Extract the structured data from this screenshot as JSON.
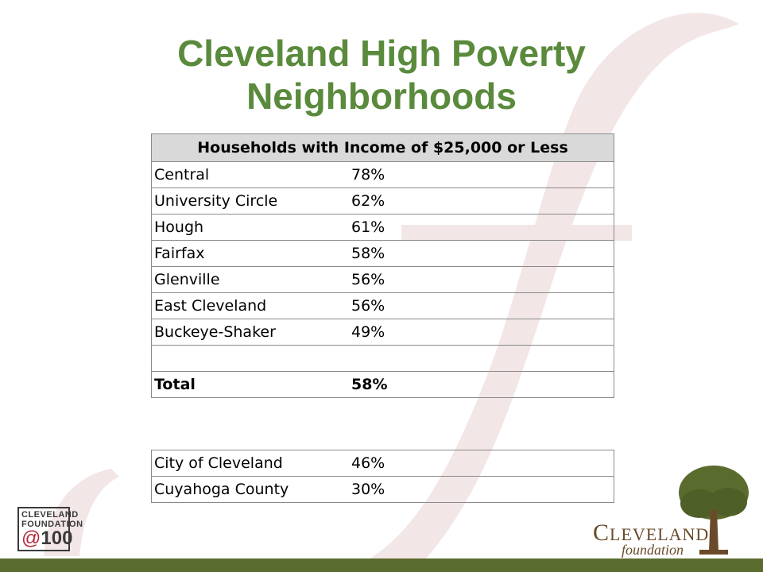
{
  "title_line1": "Cleveland High Poverty",
  "title_line2": "Neighborhoods",
  "table": {
    "header": "Households with Income of $25,000 or Less",
    "rows": [
      {
        "name": "Central",
        "value": "78%"
      },
      {
        "name": "University Circle",
        "value": "62%"
      },
      {
        "name": "Hough",
        "value": "61%"
      },
      {
        "name": "Fairfax",
        "value": "58%"
      },
      {
        "name": "Glenville",
        "value": "56%"
      },
      {
        "name": "East Cleveland",
        "value": "56%"
      },
      {
        "name": "Buckeye-Shaker",
        "value": "49%"
      }
    ],
    "total_label": "Total",
    "total_value": "58%"
  },
  "comparison": [
    {
      "name": "City of Cleveland",
      "value": "46%"
    },
    {
      "name": "Cuyahoga County",
      "value": "30%"
    }
  ],
  "logo_left": {
    "line1": "CLEVELAND",
    "line2": "FOUNDATION",
    "at": "@",
    "num": "100"
  },
  "logo_right": {
    "word1_cap": "C",
    "word1_rest": "LEVELAND",
    "word2": "foundation"
  },
  "colors": {
    "title": "#5a8a3c",
    "bar": "#5a6b2e",
    "watermark": "#f3e6e6",
    "header_bg": "#d9d9d9"
  }
}
